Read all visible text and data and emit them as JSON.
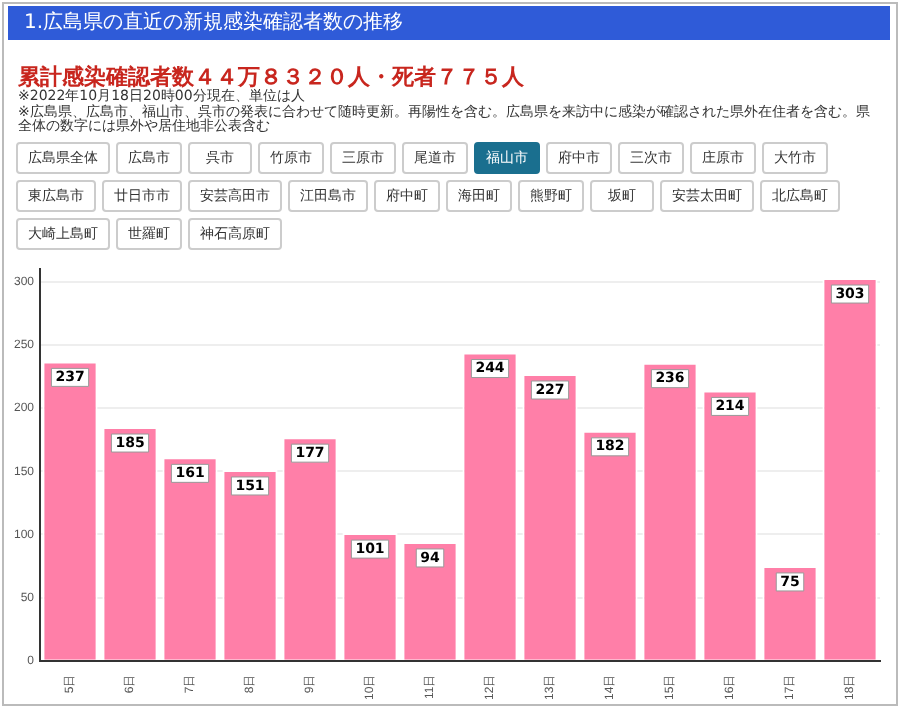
{
  "chart_data": {
    "type": "bar",
    "title": "1.広島県の直近の新規感染確認者数の推移",
    "subtitle": "累計感染確認者数４４万８３２０人・死者７７５人",
    "annotations": [
      "※2022年10月18日20時00分現在、単位は人",
      "※広島県、広島市、福山市、呉市の発表に合わせて随時更新。再陽性を含む。広島県を来訪中に感染が確認された県外在住者を含む。県全体の数字には県外や居住地非公表含む",
      "広島県全体",
      "広島市",
      "呉市",
      "竹原市",
      "三原市",
      "尾道市",
      "福山市",
      "府中市",
      "三次市",
      "庄原市",
      "大竹市",
      "東広島市",
      "廿日市市",
      "安芸高田市",
      "江田島市",
      "府中町",
      "海田町",
      "熊野町",
      "坂町",
      "安芸太田町",
      "北広島町",
      "大崎上島町",
      "世羅町",
      "神石高原町"
    ],
    "categories": [
      "5日",
      "6日",
      "7日",
      "8日",
      "9日",
      "10日",
      "11日",
      "12日",
      "13日",
      "14日",
      "15日",
      "16日",
      "17日",
      "18日"
    ],
    "values": [
      237,
      185,
      161,
      151,
      177,
      101,
      94,
      244,
      227,
      182,
      236,
      214,
      75,
      303
    ],
    "color": "#ff7fa8",
    "ylim": [
      0,
      310
    ],
    "yticks": [
      0,
      50,
      100,
      150,
      200,
      250,
      300
    ],
    "grid": "y",
    "data_labels": true,
    "legend": false
  }
}
